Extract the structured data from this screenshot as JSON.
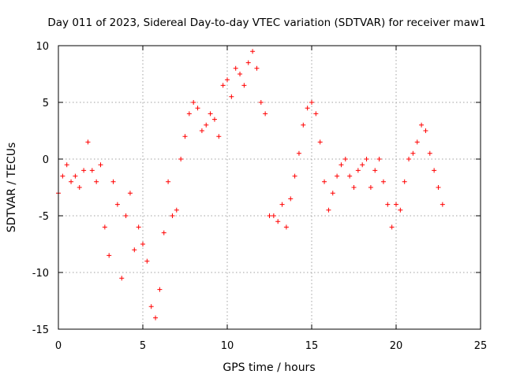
{
  "chart_data": {
    "type": "scatter",
    "title": "Day 011 of 2023, Sidereal Day-to-day VTEC variation (SDTVAR) for receiver maw1",
    "xlabel": "GPS time / hours",
    "ylabel": "SDTVAR / TECUs",
    "xlim": [
      0,
      25
    ],
    "ylim": [
      -15,
      10
    ],
    "xticks": [
      "0",
      "5",
      "10",
      "15",
      "20",
      "25"
    ],
    "yticks": [
      "-15",
      "-10",
      "-5",
      "0",
      "5",
      "10"
    ],
    "grid": true,
    "marker": "plus",
    "series": [
      {
        "name": "SDTVAR",
        "color": "#ff0000",
        "x": [
          0.0,
          0.25,
          0.5,
          0.75,
          1.0,
          1.25,
          1.5,
          1.75,
          2.0,
          2.25,
          2.5,
          2.75,
          3.0,
          3.25,
          3.5,
          3.75,
          4.0,
          4.25,
          4.5,
          4.75,
          5.0,
          5.25,
          5.5,
          5.75,
          6.0,
          6.25,
          6.5,
          6.75,
          7.0,
          7.25,
          7.5,
          7.75,
          8.0,
          8.25,
          8.5,
          8.75,
          9.0,
          9.25,
          9.5,
          9.75,
          10.0,
          10.25,
          10.5,
          10.75,
          11.0,
          11.25,
          11.5,
          11.75,
          12.0,
          12.25,
          12.5,
          12.75,
          13.0,
          13.25,
          13.5,
          13.75,
          14.0,
          14.25,
          14.5,
          14.75,
          15.0,
          15.25,
          15.5,
          15.75,
          16.0,
          16.25,
          16.5,
          16.75,
          17.0,
          17.25,
          17.5,
          17.75,
          18.0,
          18.25,
          18.5,
          18.75,
          19.0,
          19.25,
          19.5,
          19.75,
          20.0,
          20.25,
          20.5,
          20.75,
          21.0,
          21.25,
          21.5,
          21.75,
          22.0,
          22.25,
          22.5,
          22.75
        ],
        "y": [
          -3.0,
          -1.5,
          -0.5,
          -2.0,
          -1.5,
          -2.5,
          -1.0,
          1.5,
          -1.0,
          -2.0,
          -0.5,
          -6.0,
          -8.5,
          -2.0,
          -4.0,
          -10.5,
          -5.0,
          -3.0,
          -8.0,
          -6.0,
          -7.5,
          -9.0,
          -13.0,
          -14.0,
          -11.5,
          -6.5,
          -2.0,
          -5.0,
          -4.5,
          0.0,
          2.0,
          4.0,
          5.0,
          4.5,
          2.5,
          3.0,
          4.0,
          3.5,
          2.0,
          6.5,
          7.0,
          5.5,
          8.0,
          7.5,
          6.5,
          8.5,
          9.5,
          8.0,
          5.0,
          4.0,
          -5.0,
          -5.0,
          -5.5,
          -4.0,
          -6.0,
          -3.5,
          -1.5,
          0.5,
          3.0,
          4.5,
          5.0,
          4.0,
          1.5,
          -2.0,
          -4.5,
          -3.0,
          -1.5,
          -0.5,
          0.0,
          -1.5,
          -2.5,
          -1.0,
          -0.5,
          0.0,
          -2.5,
          -1.0,
          0.0,
          -2.0,
          -4.0,
          -6.0,
          -4.0,
          -4.5,
          -2.0,
          0.0,
          0.5,
          1.5,
          3.0,
          2.5,
          0.5,
          -1.0,
          -2.5,
          -4.0
        ]
      }
    ]
  }
}
